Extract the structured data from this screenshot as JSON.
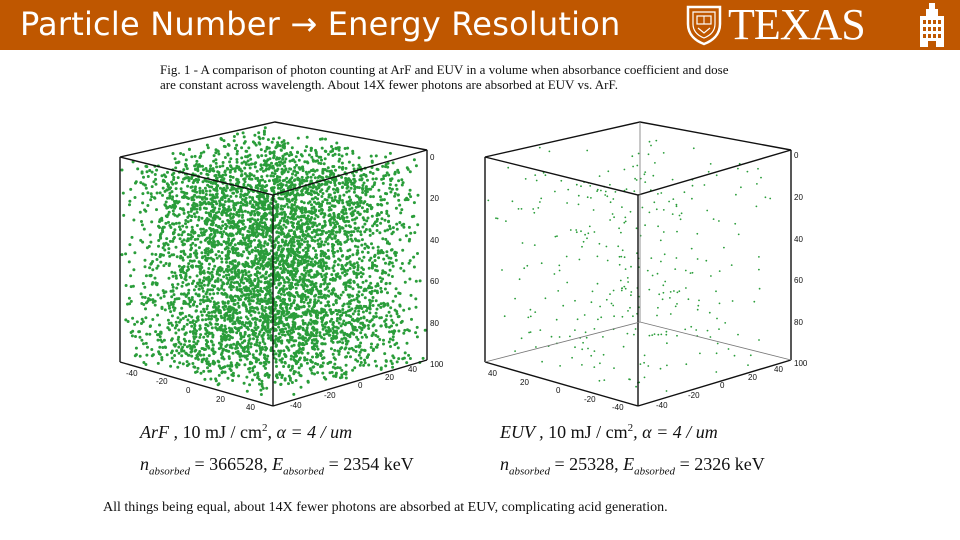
{
  "header": {
    "title": "Particle Number → Energy Resolution",
    "logo_text": "TEXAS",
    "colors": {
      "burnt_orange": "#bf5700"
    }
  },
  "figure": {
    "caption_line1": "Fig. 1 - A comparison of photon counting at ArF and EUV in a volume when absorbance coefficient and dose",
    "caption_line2": "are constant across wavelength.  About 14X fewer photons are absorbed at EUV vs. ArF.",
    "point_color": "#2a9d3a",
    "tick_labels": {
      "vertical": [
        "0",
        "20",
        "40",
        "60",
        "80",
        "100"
      ],
      "x_axis": [
        "-40",
        "-20",
        "0",
        "20",
        "40"
      ],
      "y_axis": [
        "40",
        "20",
        "0",
        "-20",
        "-40"
      ]
    },
    "panels": [
      {
        "label_prefix": "ArF ,",
        "label_dose": "10 mJ / cm",
        "label_sup": "2",
        "label_alpha": ", α = 4 / um",
        "n_symbol": "n",
        "n_sub": "absorbed",
        "n_value": " = 366528,",
        "e_symbol": "E",
        "e_sub": "absorbed",
        "e_value": " = 2354 keV",
        "density": "dense"
      },
      {
        "label_prefix": "EUV ,",
        "label_dose": "10 mJ / cm",
        "label_sup": "2",
        "label_alpha": ", α = 4 / um",
        "n_symbol": "n",
        "n_sub": "absorbed",
        "n_value": " = 25328,",
        "e_symbol": "E",
        "e_sub": "absorbed",
        "e_value": " = 2326 keV",
        "density": "sparse"
      }
    ]
  },
  "footer": {
    "text": "All things being equal, about 14X fewer photons are absorbed at EUV, complicating acid generation."
  }
}
